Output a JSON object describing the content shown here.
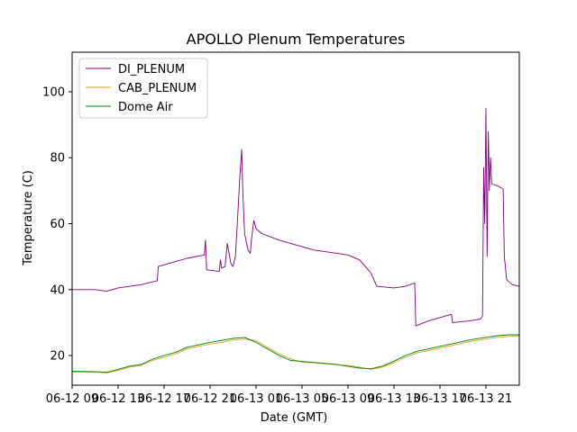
{
  "chart_data": {
    "type": "line",
    "title": "APOLLO Plenum Temperatures",
    "xlabel": "Date (GMT)",
    "ylabel": "Temperature (C)",
    "xlim": [
      0,
      38.9
    ],
    "ylim": [
      11,
      112
    ],
    "xticks": [
      {
        "at": 0,
        "label": "06-12 09"
      },
      {
        "at": 4,
        "label": "06-12 13"
      },
      {
        "at": 8,
        "label": "06-12 17"
      },
      {
        "at": 12,
        "label": "06-12 21"
      },
      {
        "at": 16,
        "label": "06-13 01"
      },
      {
        "at": 20,
        "label": "06-13 05"
      },
      {
        "at": 24,
        "label": "06-13 09"
      },
      {
        "at": 28,
        "label": "06-13 13"
      },
      {
        "at": 32,
        "label": "06-13 17"
      },
      {
        "at": 36,
        "label": "06-13 21"
      }
    ],
    "yticks": [
      20,
      40,
      60,
      80,
      100
    ],
    "grid": false,
    "legend": "upper-left",
    "series": [
      {
        "name": "DI_PLENUM",
        "color": "#800080",
        "points": [
          [
            0,
            40
          ],
          [
            2,
            40
          ],
          [
            3,
            39.5
          ],
          [
            4,
            40.5
          ],
          [
            6,
            41.5
          ],
          [
            7.4,
            42.7
          ],
          [
            7.5,
            47
          ],
          [
            9,
            48.5
          ],
          [
            10,
            49.5
          ],
          [
            11.5,
            50.5
          ],
          [
            11.6,
            55
          ],
          [
            11.7,
            46
          ],
          [
            12.8,
            45.5
          ],
          [
            12.9,
            49
          ],
          [
            13,
            46.5
          ],
          [
            13.3,
            47
          ],
          [
            13.5,
            54
          ],
          [
            13.8,
            48
          ],
          [
            14,
            47
          ],
          [
            14.2,
            50
          ],
          [
            14.4,
            62
          ],
          [
            14.6,
            75
          ],
          [
            14.75,
            82.5
          ],
          [
            14.85,
            70
          ],
          [
            15,
            57
          ],
          [
            15.3,
            52
          ],
          [
            15.5,
            51
          ],
          [
            15.6,
            55
          ],
          [
            15.8,
            61
          ],
          [
            16,
            58.5
          ],
          [
            16.5,
            57
          ],
          [
            18,
            55
          ],
          [
            20,
            53
          ],
          [
            21,
            52
          ],
          [
            22,
            51.5
          ],
          [
            24,
            50.5
          ],
          [
            25,
            49
          ],
          [
            26,
            45
          ],
          [
            26.5,
            41
          ],
          [
            28,
            40.5
          ],
          [
            29,
            41
          ],
          [
            29.8,
            42
          ],
          [
            29.9,
            29
          ],
          [
            31,
            30.5
          ],
          [
            33,
            32.5
          ],
          [
            33.1,
            30
          ],
          [
            34.5,
            30.5
          ],
          [
            35.5,
            31
          ],
          [
            35.7,
            32
          ],
          [
            35.8,
            77
          ],
          [
            35.9,
            60
          ],
          [
            36,
            95
          ],
          [
            36.1,
            50
          ],
          [
            36.2,
            88
          ],
          [
            36.3,
            70
          ],
          [
            36.4,
            80
          ],
          [
            36.5,
            72
          ],
          [
            37,
            71.5
          ],
          [
            37.5,
            70.5
          ],
          [
            37.6,
            50
          ],
          [
            37.8,
            43
          ],
          [
            38.3,
            41.5
          ],
          [
            38.9,
            41
          ]
        ]
      },
      {
        "name": "CAB_PLENUM",
        "color": "#daa520",
        "points": [
          [
            0,
            15
          ],
          [
            2,
            15
          ],
          [
            3,
            14.7
          ],
          [
            4,
            15.5
          ],
          [
            5,
            16.5
          ],
          [
            6,
            17
          ],
          [
            7,
            18.5
          ],
          [
            8,
            19.5
          ],
          [
            9,
            20.5
          ],
          [
            10,
            22
          ],
          [
            12,
            23.5
          ],
          [
            13,
            24
          ],
          [
            14,
            24.7
          ],
          [
            15,
            25
          ],
          [
            16,
            24.5
          ],
          [
            17,
            22.5
          ],
          [
            18,
            20.5
          ],
          [
            19,
            19
          ],
          [
            20,
            18
          ],
          [
            21,
            17.8
          ],
          [
            22,
            17.5
          ],
          [
            23,
            17.2
          ],
          [
            24,
            17
          ],
          [
            25,
            16.5
          ],
          [
            26,
            15.8
          ],
          [
            27,
            16.5
          ],
          [
            28,
            17.8
          ],
          [
            29,
            19.5
          ],
          [
            30,
            20.8
          ],
          [
            31,
            21.5
          ],
          [
            32,
            22.3
          ],
          [
            33,
            23
          ],
          [
            34,
            23.8
          ],
          [
            35,
            24.5
          ],
          [
            36,
            25
          ],
          [
            37,
            25.5
          ],
          [
            38,
            25.8
          ],
          [
            38.9,
            26
          ]
        ]
      },
      {
        "name": "Dome Air",
        "color": "#008000",
        "points": [
          [
            0,
            15.2
          ],
          [
            2,
            15.1
          ],
          [
            3,
            14.9
          ],
          [
            4,
            15.8
          ],
          [
            5,
            16.8
          ],
          [
            6,
            17.3
          ],
          [
            7,
            18.9
          ],
          [
            8,
            20
          ],
          [
            9,
            21
          ],
          [
            10,
            22.5
          ],
          [
            12,
            24
          ],
          [
            13,
            24.6
          ],
          [
            14,
            25.2
          ],
          [
            15,
            25.5
          ],
          [
            16,
            24
          ],
          [
            17,
            22
          ],
          [
            18,
            20
          ],
          [
            19,
            18.5
          ],
          [
            20,
            18.2
          ],
          [
            21,
            17.9
          ],
          [
            22,
            17.6
          ],
          [
            23,
            17.3
          ],
          [
            24,
            16.7
          ],
          [
            25,
            16.2
          ],
          [
            26,
            16
          ],
          [
            27,
            16.8
          ],
          [
            28,
            18.3
          ],
          [
            29,
            20
          ],
          [
            30,
            21.3
          ],
          [
            31,
            22
          ],
          [
            32,
            22.8
          ],
          [
            33,
            23.5
          ],
          [
            34,
            24.3
          ],
          [
            35,
            25
          ],
          [
            36,
            25.5
          ],
          [
            37,
            26
          ],
          [
            38,
            26.3
          ],
          [
            38.9,
            26.3
          ]
        ]
      }
    ]
  }
}
